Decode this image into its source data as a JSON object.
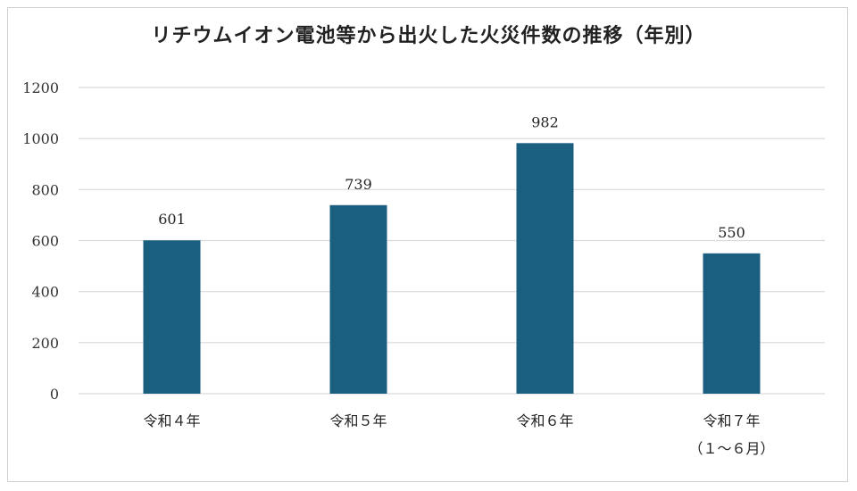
{
  "chart_data": {
    "type": "bar",
    "title": "リチウムイオン電池等から出火した火災件数の推移（年別）",
    "categories": [
      [
        "令和４年"
      ],
      [
        "令和５年"
      ],
      [
        "令和６年"
      ],
      [
        "令和７年",
        "（１～６月）"
      ]
    ],
    "values": [
      601,
      739,
      982,
      550
    ],
    "data_labels": [
      "601",
      "739",
      "982",
      "550"
    ],
    "y_ticks": [
      "0",
      "200",
      "400",
      "600",
      "800",
      "1000",
      "1200"
    ],
    "ylim": [
      0,
      1200
    ],
    "grid": true,
    "legend": "none",
    "bar_color": "#1a5e80",
    "grid_color": "#d9d9d9"
  }
}
